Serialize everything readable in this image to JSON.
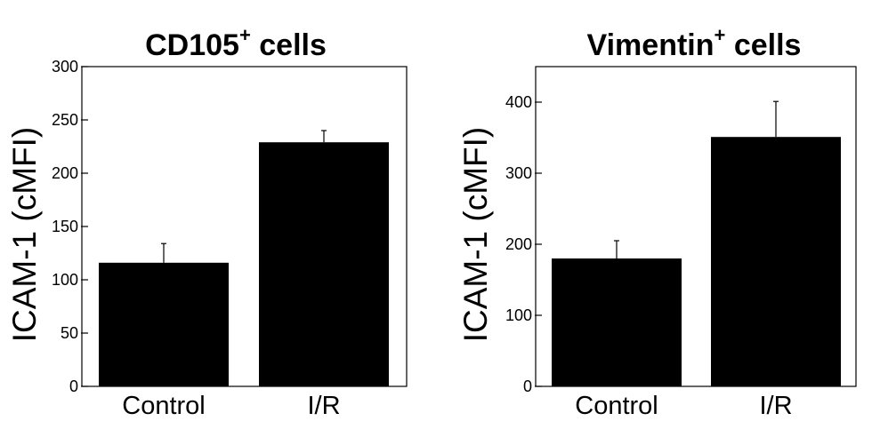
{
  "chart_data": [
    {
      "type": "bar",
      "title": "CD105",
      "title_sup": "+",
      "title_suffix": " cells",
      "ylabel": "ICAM-1 (cMFI)",
      "xlabel": "",
      "categories": [
        "Control",
        "I/R"
      ],
      "values": [
        116,
        229
      ],
      "error": [
        18,
        11
      ],
      "ylim": [
        0,
        300
      ],
      "yticks": [
        0,
        50,
        100,
        150,
        200,
        250,
        300
      ],
      "bar_color": "#000000",
      "grid": false,
      "legend": "none"
    },
    {
      "type": "bar",
      "title": "Vimentin",
      "title_sup": "+",
      "title_suffix": " cells",
      "ylabel": "ICAM-1 (cMFI)",
      "xlabel": "",
      "categories": [
        "Control",
        "I/R"
      ],
      "values": [
        180,
        351
      ],
      "error": [
        25,
        50
      ],
      "ylim": [
        0,
        450
      ],
      "yticks": [
        0,
        100,
        200,
        300,
        400
      ],
      "bar_color": "#000000",
      "grid": false,
      "legend": "none"
    }
  ]
}
